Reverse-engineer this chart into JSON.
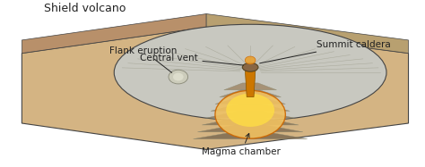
{
  "title": "Shield volcano",
  "bg_color": "#f5f0e0",
  "labels": {
    "title": "Shield volcano",
    "central_vent": "Central vent",
    "summit_caldera": "Summit caldera",
    "flank_eruption": "Flank eruption",
    "magma_chamber": "Magma chamber"
  },
  "colors": {
    "ground_top": "#d4b483",
    "ground_bottom": "#c8a060",
    "ground_side": "#b8906a",
    "volcano_surface": "#c8c8c0",
    "volcano_dark": "#a0a090",
    "lava_layers": "#8b7355",
    "lava_layers2": "#a08060",
    "magma": "#e8a030",
    "magma_glow": "#f0c060",
    "vent_dark": "#555545",
    "text_color": "#222222",
    "white": "#ffffff",
    "outline": "#444444"
  },
  "figsize": [
    4.74,
    1.87
  ],
  "dpi": 100
}
